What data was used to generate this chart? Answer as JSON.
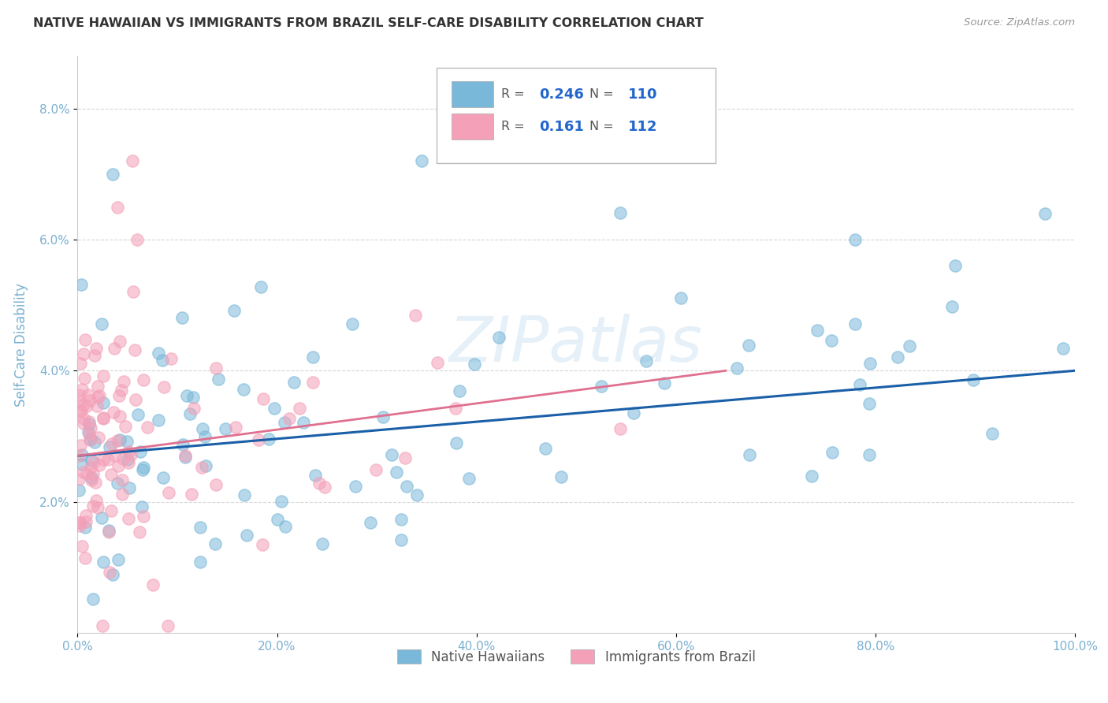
{
  "title": "NATIVE HAWAIIAN VS IMMIGRANTS FROM BRAZIL SELF-CARE DISABILITY CORRELATION CHART",
  "source": "Source: ZipAtlas.com",
  "ylabel_label": "Self-Care Disability",
  "legend_labels": [
    "Native Hawaiians",
    "Immigrants from Brazil"
  ],
  "legend_R_values": [
    "0.246",
    "0.161"
  ],
  "legend_N_values": [
    "110",
    "112"
  ],
  "blue_color": "#7ab8d9",
  "pink_color": "#f4a0b8",
  "blue_line_color": "#1a5fa8",
  "pink_line_color": "#e07090",
  "watermark": "ZIPatlas",
  "xlim": [
    0.0,
    1.0
  ],
  "ylim": [
    0.0,
    0.088
  ],
  "blue_R": 0.246,
  "blue_N": 110,
  "pink_R": 0.161,
  "pink_N": 112,
  "background_color": "#ffffff",
  "grid_color": "#cccccc",
  "title_color": "#333333",
  "axis_label_color": "#7ab0d0",
  "tick_color": "#7ab0d0"
}
